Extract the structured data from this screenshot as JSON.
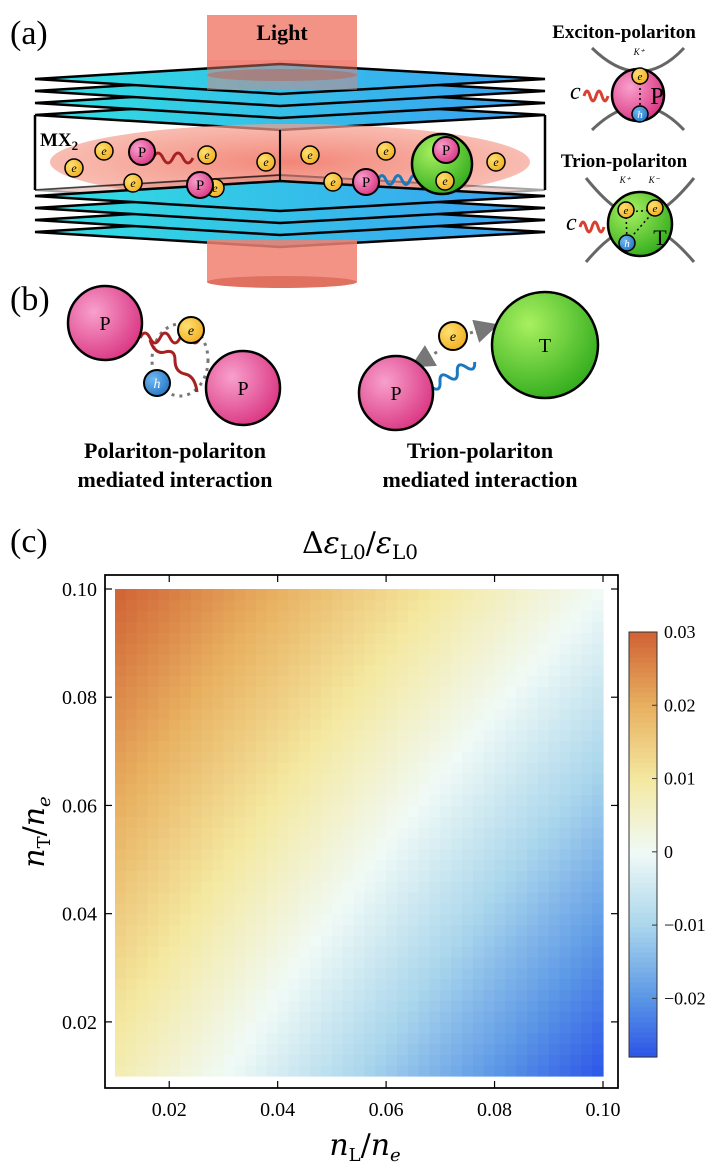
{
  "panel_a": {
    "label": "(a)",
    "light_label": "Light",
    "material_label": "MX",
    "material_subscript": "2",
    "exciton_title": "Exciton-polariton",
    "trion_title": "Trion-polariton",
    "valley_k_plus": "K⁺",
    "valley_k_minus": "K⁻",
    "photon_symbol": "c",
    "polariton_symbol": "P",
    "trion_symbol": "T",
    "electron_symbol": "e",
    "hole_symbol": "h"
  },
  "panel_b": {
    "label": "(b)",
    "left_caption_line1": "Polariton-polariton",
    "left_caption_line2": "mediated interaction",
    "right_caption_line1": "Trion-polariton",
    "right_caption_line2": "mediated interaction"
  },
  "panel_c": {
    "label": "(c)"
  },
  "colors": {
    "layer_cyan": "#2ed8e8",
    "layer_blue": "#3aa6f0",
    "light_beam": "#f08070",
    "polariton_pink": "#e8489a",
    "trion_green": "#3cb820",
    "electron_yellow": "#f5c030",
    "hole_blue": "#3a8ed8",
    "photon_red": "#d84030",
    "photon_blue": "#2e8ed8"
  },
  "chart_data": {
    "type": "heatmap",
    "title": "Δε_L0/ε_L0",
    "xlabel": "n_L/n_e",
    "ylabel": "n_T/n_e",
    "xlim": [
      0.01,
      0.1
    ],
    "ylim": [
      0.01,
      0.1
    ],
    "x_ticks": [
      0.02,
      0.04,
      0.06,
      0.08,
      0.1
    ],
    "x_tick_labels": [
      "0.02",
      "0.04",
      "0.06",
      "0.08",
      "0.10"
    ],
    "y_ticks": [
      0.02,
      0.04,
      0.06,
      0.08,
      0.1
    ],
    "y_tick_labels": [
      "0.02",
      "0.04",
      "0.06",
      "0.08",
      "0.10"
    ],
    "colorbar": {
      "range": [
        -0.028,
        0.03
      ],
      "ticks": [
        0.03,
        0.02,
        0.01,
        0,
        -0.01,
        -0.02
      ],
      "tick_labels": [
        "0.03",
        "0.02",
        "0.01",
        "0",
        "−0.01",
        "−0.02"
      ]
    },
    "corner_values": {
      "x0.01_y0.10": 0.03,
      "x0.10_y0.10": 0.0,
      "x0.01_y0.01": 0.008,
      "x0.10_y0.01": -0.028
    },
    "grid": false,
    "legend": "colorbar-right"
  }
}
